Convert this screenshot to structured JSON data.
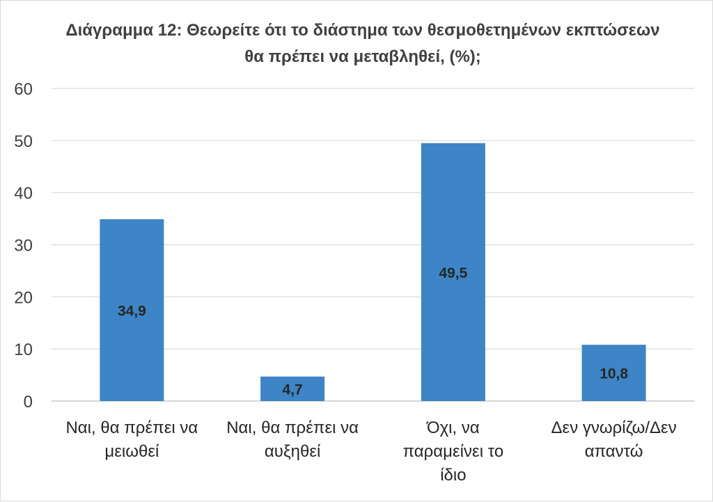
{
  "chart_data": {
    "type": "bar",
    "title": "Διάγραμμα 12: Θεωρείτε ότι το διάστημα των θεσμοθετημένων εκπτώσεων θα πρέπει να μεταβληθεί, (%);",
    "categories": [
      [
        "Ναι, θα πρέπει να",
        "μειωθεί"
      ],
      [
        "Ναι, θα πρέπει να",
        "αυξηθεί"
      ],
      [
        "Όχι, να",
        "παραμείνει το",
        "ίδιο"
      ],
      [
        "Δεν γνωρίζω/Δεν",
        "απαντώ"
      ]
    ],
    "values": [
      34.9,
      4.7,
      49.5,
      10.8
    ],
    "data_labels": [
      "34,9",
      "4,7",
      "49,5",
      "10,8"
    ],
    "ylim": [
      0,
      60
    ],
    "yticks": [
      0,
      10,
      20,
      30,
      40,
      50,
      60
    ],
    "grid": true,
    "bar_color": "#3d85c6"
  }
}
